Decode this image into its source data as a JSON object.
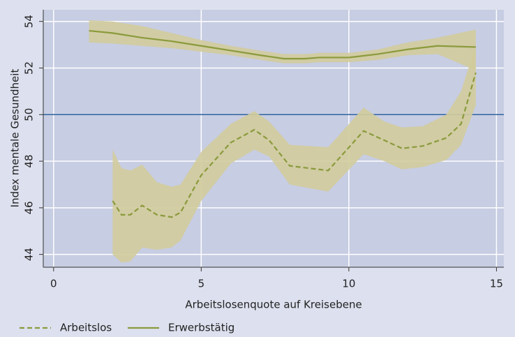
{
  "chart_data": {
    "type": "line",
    "xlabel": "Arbeitslosenquote auf Kreisebene",
    "ylabel": "Index mentale Gesundheit",
    "xlim": [
      -0.35,
      15.25
    ],
    "ylim": [
      43.45,
      54.5
    ],
    "xticks": [
      0,
      5,
      10,
      15
    ],
    "yticks": [
      44,
      46,
      48,
      50,
      52,
      54
    ],
    "grid": true,
    "hline": 50,
    "hline_color": "#2f63a0",
    "band_color": "#d2cc9c",
    "legend": "bottom",
    "series": [
      {
        "name": "Arbeitslos",
        "color": "#8a9a3c",
        "dashed": true,
        "x": [
          2,
          2.3,
          2.6,
          3,
          3.5,
          4,
          4.3,
          5,
          6,
          6.8,
          7.3,
          8,
          9.3,
          10.5,
          11.2,
          11.8,
          12.5,
          13.3,
          13.8,
          14.3
        ],
        "values": [
          46.3,
          45.7,
          45.7,
          46.1,
          45.7,
          45.6,
          45.8,
          47.4,
          48.8,
          49.35,
          48.9,
          47.8,
          47.6,
          49.3,
          48.9,
          48.55,
          48.65,
          49.0,
          49.6,
          51.8
        ],
        "ci_lower": [
          44.0,
          43.65,
          43.7,
          44.3,
          44.2,
          44.3,
          44.6,
          46.3,
          47.9,
          48.5,
          48.2,
          47.0,
          46.7,
          48.3,
          48.0,
          47.65,
          47.75,
          48.05,
          48.7,
          50.4
        ],
        "ci_upper": [
          48.5,
          47.7,
          47.6,
          47.85,
          47.1,
          46.9,
          47.0,
          48.4,
          49.6,
          50.15,
          49.7,
          48.7,
          48.6,
          50.3,
          49.7,
          49.45,
          49.5,
          50.0,
          51.0,
          53.0
        ]
      },
      {
        "name": "Erwerbstätig",
        "color": "#8a9a3c",
        "dashed": false,
        "x": [
          1.2,
          2,
          3,
          4,
          5,
          6,
          7,
          7.8,
          8.5,
          9,
          10,
          11,
          12,
          13,
          14.3
        ],
        "values": [
          53.6,
          53.5,
          53.3,
          53.15,
          52.95,
          52.75,
          52.55,
          52.4,
          52.4,
          52.45,
          52.45,
          52.6,
          52.8,
          52.95,
          52.9
        ],
        "ci_lower": [
          53.1,
          53.05,
          52.95,
          52.85,
          52.7,
          52.55,
          52.35,
          52.2,
          52.2,
          52.25,
          52.25,
          52.35,
          52.55,
          52.6,
          51.9
        ],
        "ci_upper": [
          54.05,
          54.0,
          53.8,
          53.5,
          53.2,
          52.95,
          52.75,
          52.6,
          52.6,
          52.65,
          52.65,
          52.8,
          53.1,
          53.3,
          53.65
        ]
      }
    ]
  }
}
